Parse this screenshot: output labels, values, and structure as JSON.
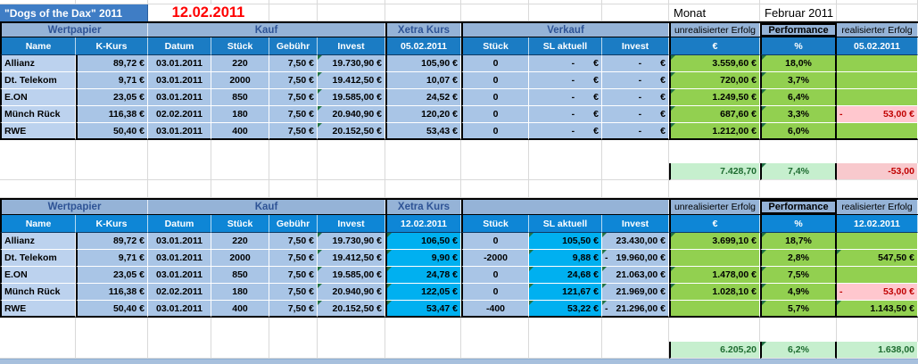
{
  "app": {
    "title": "\"Dogs of the Dax\"  2011",
    "date": "12.02.2011",
    "monat": "Monat",
    "month": "Februar 2011"
  },
  "colors": {
    "header_blue_table1": "#1b7cc4",
    "header_blue_table2": "#0e86d6",
    "band_blue": "#95b3d7",
    "row_blue": "#a9c5e6",
    "cyan": "#00b0f0",
    "green": "#92d050",
    "light_green_total": "#c6efce",
    "pink_negative": "#ffc7ce",
    "negative_text_red": "#c00000",
    "title_bar_blue": "#3f7dc5",
    "date_red": "#ff0000"
  },
  "tables": [
    {
      "band": {
        "wertpapier": "Wertpapier",
        "kauf": "Kauf",
        "xetra": "Xetra Kurs",
        "verkauf": "Verkauf",
        "unrealisiert": "unrealisierter Erfolg",
        "performance": "Performance",
        "realisiert": "realisierter Erfolg"
      },
      "headers": [
        "Name",
        "K-Kurs",
        "Datum",
        "Stück",
        "Gebühr",
        "Invest",
        "05.02.2011",
        "Stück",
        "SL aktuell",
        "Invest",
        "€",
        "%",
        "05.02.2011"
      ],
      "rows": [
        [
          "Allianz",
          "89,72 €",
          "03.01.2011",
          "220",
          "7,50 €",
          "19.730,90 €",
          "105,90 €",
          "0",
          "-  €",
          "-  €",
          "3.559,60 €",
          "18,0%",
          ""
        ],
        [
          "Dt. Telekom",
          "9,71 €",
          "03.01.2011",
          "2000",
          "7,50 €",
          "19.412,50 €",
          "10,07 €",
          "0",
          "-  €",
          "-  €",
          "720,00 €",
          "3,7%",
          ""
        ],
        [
          "E.ON",
          "23,05 €",
          "03.01.2011",
          "850",
          "7,50 €",
          "19.585,00 €",
          "24,52 €",
          "0",
          "-  €",
          "-  €",
          "1.249,50 €",
          "6,4%",
          ""
        ],
        [
          "Münch Rück",
          "116,38 €",
          "02.02.2011",
          "180",
          "7,50 €",
          "20.940,90 €",
          "120,20 €",
          "0",
          "-  €",
          "-  €",
          "687,60 €",
          "3,3%",
          [
            "-",
            "53,00 €"
          ]
        ],
        [
          "RWE",
          "50,40 €",
          "03.01.2011",
          "400",
          "7,50 €",
          "20.152,50 €",
          "53,43 €",
          "0",
          "-  €",
          "-  €",
          "1.212,00 €",
          "6,0%",
          ""
        ]
      ],
      "totals": [
        "7.428,70",
        "7,4%",
        "-53,00"
      ]
    },
    {
      "band": {
        "wertpapier": "Wertpapier",
        "kauf": "Kauf",
        "xetra": "Xetra Kurs",
        "verkauf": "",
        "unrealisiert": "unrealisierter Erfolg",
        "performance": "Performance",
        "realisiert": "realisierter Erfolg"
      },
      "headers": [
        "Name",
        "K-Kurs",
        "Datum",
        "Stück",
        "Gebühr",
        "Invest",
        "12.02.2011",
        "Stück",
        "SL aktuell",
        "Invest",
        "€",
        "%",
        "12.02.2011"
      ],
      "rows": [
        [
          "Allianz",
          "89,72 €",
          "03.01.2011",
          "220",
          "7,50 €",
          "19.730,90 €",
          "106,50 €",
          "0",
          "105,50 €",
          "23.430,00 €",
          "3.699,10 €",
          "18,7%",
          ""
        ],
        [
          "Dt. Telekom",
          "9,71 €",
          "03.01.2011",
          "2000",
          "7,50 €",
          "19.412,50 €",
          "9,90 €",
          "-2000",
          "9,88 €",
          [
            "-",
            "19.960,00 €"
          ],
          "",
          "2,8%",
          "547,50 €"
        ],
        [
          "E.ON",
          "23,05 €",
          "03.01.2011",
          "850",
          "7,50 €",
          "19.585,00 €",
          "24,78 €",
          "0",
          "24,68 €",
          "21.063,00 €",
          "1.478,00 €",
          "7,5%",
          ""
        ],
        [
          "Münch Rück",
          "116,38 €",
          "02.02.2011",
          "180",
          "7,50 €",
          "20.940,90 €",
          "122,05 €",
          "0",
          "121,67 €",
          "21.969,00 €",
          "1.028,10 €",
          "4,9%",
          [
            "-",
            "53,00 €"
          ]
        ],
        [
          "RWE",
          "50,40 €",
          "03.01.2011",
          "400",
          "7,50 €",
          "20.152,50 €",
          "53,47 €",
          "-400",
          "53,22 €",
          [
            "-",
            "21.296,00 €"
          ],
          "",
          "5,7%",
          "1.143,50 €"
        ]
      ],
      "totals": [
        "6.205,20",
        "6,2%",
        "1.638,00"
      ]
    }
  ]
}
